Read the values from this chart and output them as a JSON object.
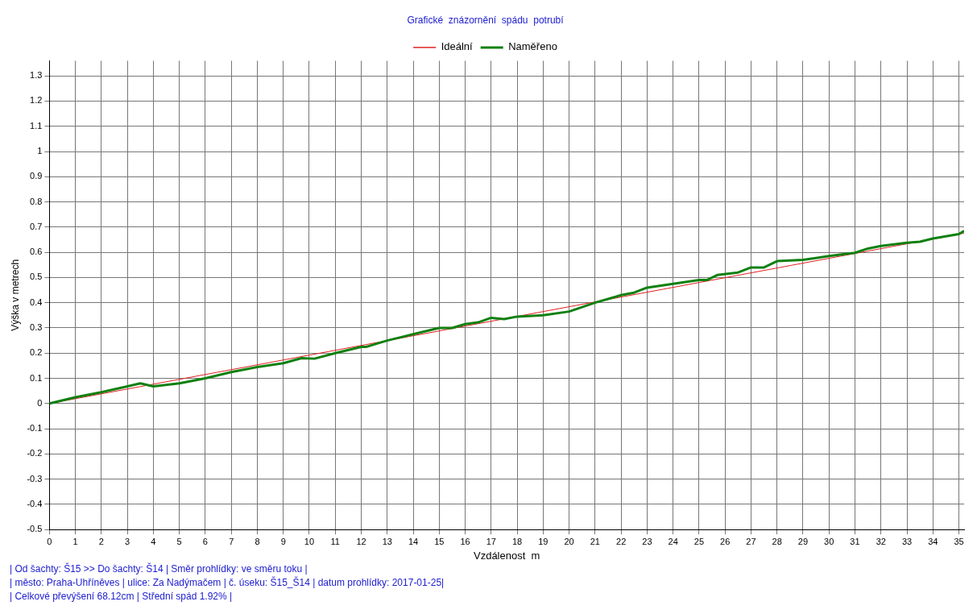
{
  "chart_data": {
    "type": "line",
    "title": "Grafické  znázornění  spádu  potrubí",
    "xlabel": "Vzdálenost  m",
    "ylabel": "Výška v metrech",
    "xlim": [
      0,
      35.2
    ],
    "xticks": [
      0,
      1,
      2,
      3,
      4,
      5,
      6,
      7,
      8,
      9,
      10,
      11,
      12,
      13,
      14,
      15,
      16,
      17,
      18,
      19,
      20,
      21,
      22,
      23,
      24,
      25,
      26,
      27,
      28,
      29,
      30,
      31,
      32,
      33,
      34,
      35
    ],
    "ylim": [
      -0.5,
      1.36
    ],
    "yticks": [
      -0.5,
      -0.4,
      -0.3,
      -0.2,
      -0.1,
      0,
      0.1,
      0.2,
      0.3,
      0.4,
      0.5,
      0.6,
      0.7,
      0.8,
      0.9,
      1,
      1.1,
      1.2,
      1.3
    ],
    "grid": true,
    "legend": "top",
    "marker": "none",
    "line_style": "solid",
    "series": [
      {
        "name": "Ideální",
        "color": "#e02020",
        "x": [
          0,
          35.2
        ],
        "values": [
          0,
          0.676
        ]
      },
      {
        "name": "Naměřeno",
        "color": "#108010",
        "x": [
          0,
          1,
          2,
          3,
          3.5,
          4,
          5,
          6,
          7,
          8,
          9,
          9.7,
          10.2,
          11,
          12,
          12.2,
          13,
          14,
          15,
          15.5,
          16,
          16.5,
          17,
          17.5,
          18,
          19,
          20,
          21,
          22,
          22.5,
          23,
          24,
          25,
          25.3,
          25.7,
          26.5,
          27,
          27.5,
          28,
          29,
          30,
          31,
          31.5,
          32,
          33,
          33.5,
          34,
          35,
          35.2
        ],
        "values": [
          0,
          0.025,
          0.045,
          0.068,
          0.08,
          0.068,
          0.08,
          0.1,
          0.125,
          0.145,
          0.16,
          0.18,
          0.178,
          0.2,
          0.225,
          0.225,
          0.25,
          0.275,
          0.3,
          0.3,
          0.315,
          0.322,
          0.34,
          0.335,
          0.345,
          0.35,
          0.365,
          0.4,
          0.43,
          0.44,
          0.46,
          0.475,
          0.49,
          0.49,
          0.51,
          0.52,
          0.54,
          0.54,
          0.565,
          0.57,
          0.585,
          0.598,
          0.615,
          0.625,
          0.638,
          0.642,
          0.655,
          0.672,
          0.685
        ]
      }
    ],
    "annotations": [
      "| Od šachty: Š15 >> Do šachty: Š14 | Směr prohlídky: ve směru toku |",
      "| město: Praha-Uhříněves | ulice: Za Nadýmačem | č. úseku: Š15_Š14 | datum prohlídky: 2017-01-25|",
      "| Celkové převýšení 68.12cm | Střední spád 1.92% |"
    ]
  }
}
